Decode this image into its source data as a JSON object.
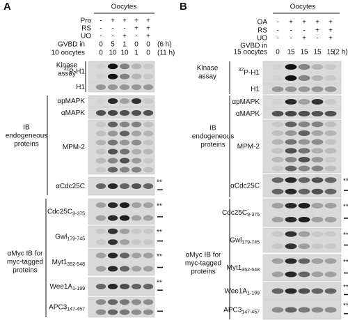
{
  "panels": [
    {
      "letter": "A",
      "header": "Oocytes",
      "conditions": [
        {
          "label": "Pro",
          "marks": [
            "-",
            "+",
            "+",
            "+",
            "+"
          ]
        },
        {
          "label": "RS",
          "marks": [
            "-",
            "-",
            "-",
            "+",
            "+"
          ]
        },
        {
          "label": "UO",
          "marks": [
            "-",
            "-",
            "+",
            "-",
            "+"
          ]
        }
      ],
      "gvbd_label": [
        "GVBD in",
        "10 oocytes"
      ],
      "gvbd_rows": [
        {
          "values": [
            "0",
            "5",
            "1",
            "0",
            "0"
          ],
          "time": "(6 h)"
        },
        {
          "values": [
            "0",
            "10",
            "10",
            "1",
            "0"
          ],
          "time": "(11 h)"
        }
      ],
      "groups": [
        [
          "Kinase",
          "assay"
        ],
        [
          "IB",
          "endogeneous",
          "proteins"
        ],
        [
          "αMyc IB for",
          "myc-tagged",
          "proteins"
        ]
      ],
      "blots": [
        {
          "sup": "32",
          "label": "P-H1"
        },
        {
          "label": "H1"
        },
        {
          "label": "αpMAPK"
        },
        {
          "label": "αMAPK"
        },
        {
          "label": "MPM-2"
        },
        {
          "label": "αCdc25C",
          "stars": "**"
        },
        {
          "label": "Cdc25C",
          "sub": "9-375",
          "stars": "**"
        },
        {
          "label": "Gwl",
          "sub": "179-745",
          "stars": "**"
        },
        {
          "label": "Myt1",
          "sub": "352-548",
          "stars": "**"
        },
        {
          "label": "Wee1A",
          "sub": "1-199",
          "stars": "**"
        },
        {
          "label": "APC3",
          "sub": "147-457"
        }
      ]
    },
    {
      "letter": "B",
      "header": "Oocytes",
      "conditions": [
        {
          "label": "OA",
          "marks": [
            "-",
            "+",
            "+",
            "+",
            "+"
          ]
        },
        {
          "label": "RS",
          "marks": [
            "-",
            "-",
            "-",
            "+",
            "+"
          ]
        },
        {
          "label": "UO",
          "marks": [
            "-",
            "-",
            "+",
            "-",
            "+"
          ]
        }
      ],
      "gvbd_label": [
        "GVBD in",
        "15 oocytes"
      ],
      "gvbd_rows": [
        {
          "values": [
            "0",
            "15",
            "15",
            "15",
            "15"
          ],
          "time": "(2 h)"
        }
      ],
      "groups": [
        [
          "Kinase",
          "assay"
        ],
        [
          "IB",
          "endogeneous",
          "proteins"
        ],
        [
          "αMyc IB for",
          "myc-tagged",
          "proteins"
        ]
      ],
      "blots": [
        {
          "sup": "32",
          "label": "P-H1"
        },
        {
          "label": "H1"
        },
        {
          "label": "αpMAPK"
        },
        {
          "label": "αMAPK"
        },
        {
          "label": "MPM-2"
        },
        {
          "label": "αCdc25C",
          "stars": "**"
        },
        {
          "label": "Cdc25C",
          "sub": "9-375",
          "stars": "**"
        },
        {
          "label": "Gwl",
          "sub": "179-745",
          "stars": "**"
        },
        {
          "label": "Myt1",
          "sub": "352-548",
          "stars": "**"
        },
        {
          "label": "Wee1A",
          "sub": "1-199",
          "stars": "**"
        },
        {
          "label": "APC3",
          "sub": "147-457",
          "stars": "**"
        }
      ]
    }
  ]
}
